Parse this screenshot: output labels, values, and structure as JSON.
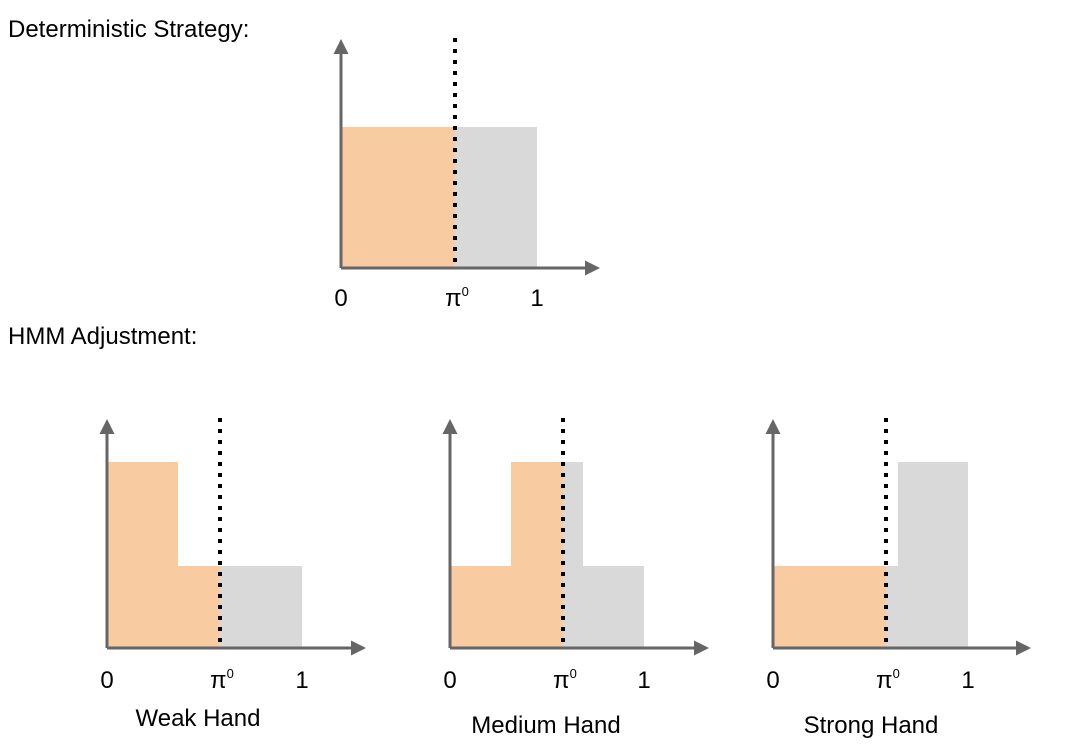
{
  "headings": {
    "deterministic": "Deterministic Strategy:",
    "hmm": "HMM Adjustment:"
  },
  "colors": {
    "orange": "#F8CBA0",
    "gray": "#D9D9D9",
    "axis": "#666666",
    "divider": "#000000"
  },
  "axis_labels": {
    "zero": "0",
    "pi_base": "π",
    "pi_sup": "0",
    "one": "1"
  },
  "panels": [
    {
      "id": "deterministic",
      "label": "",
      "bars": [
        {
          "level": "high",
          "color": "orange",
          "from": 0,
          "to": "pi0"
        },
        {
          "level": "high",
          "color": "gray",
          "from": "pi0",
          "to": 1
        }
      ]
    },
    {
      "id": "weak",
      "label": "Weak Hand",
      "bars": [
        {
          "level": "high",
          "color": "orange",
          "from": 0,
          "to": "mid"
        },
        {
          "level": "low",
          "color": "orange",
          "from": "mid",
          "to": "pi0"
        },
        {
          "level": "low",
          "color": "gray",
          "from": "pi0",
          "to": 1
        }
      ]
    },
    {
      "id": "medium",
      "label": "Medium Hand",
      "bars": [
        {
          "level": "low",
          "color": "orange",
          "from": 0,
          "to": "mid"
        },
        {
          "level": "high",
          "color": "orange",
          "from": "mid",
          "to": "pi0"
        },
        {
          "level": "high",
          "color": "gray",
          "from": "pi0",
          "to": "mid2"
        },
        {
          "level": "low",
          "color": "gray",
          "from": "mid2",
          "to": 1
        }
      ]
    },
    {
      "id": "strong",
      "label": "Strong Hand",
      "bars": [
        {
          "level": "low",
          "color": "orange",
          "from": 0,
          "to": "pi0"
        },
        {
          "level": "low",
          "color": "gray",
          "from": "pi0",
          "to": "mid2"
        },
        {
          "level": "high",
          "color": "gray",
          "from": "mid2",
          "to": 1
        }
      ]
    }
  ]
}
